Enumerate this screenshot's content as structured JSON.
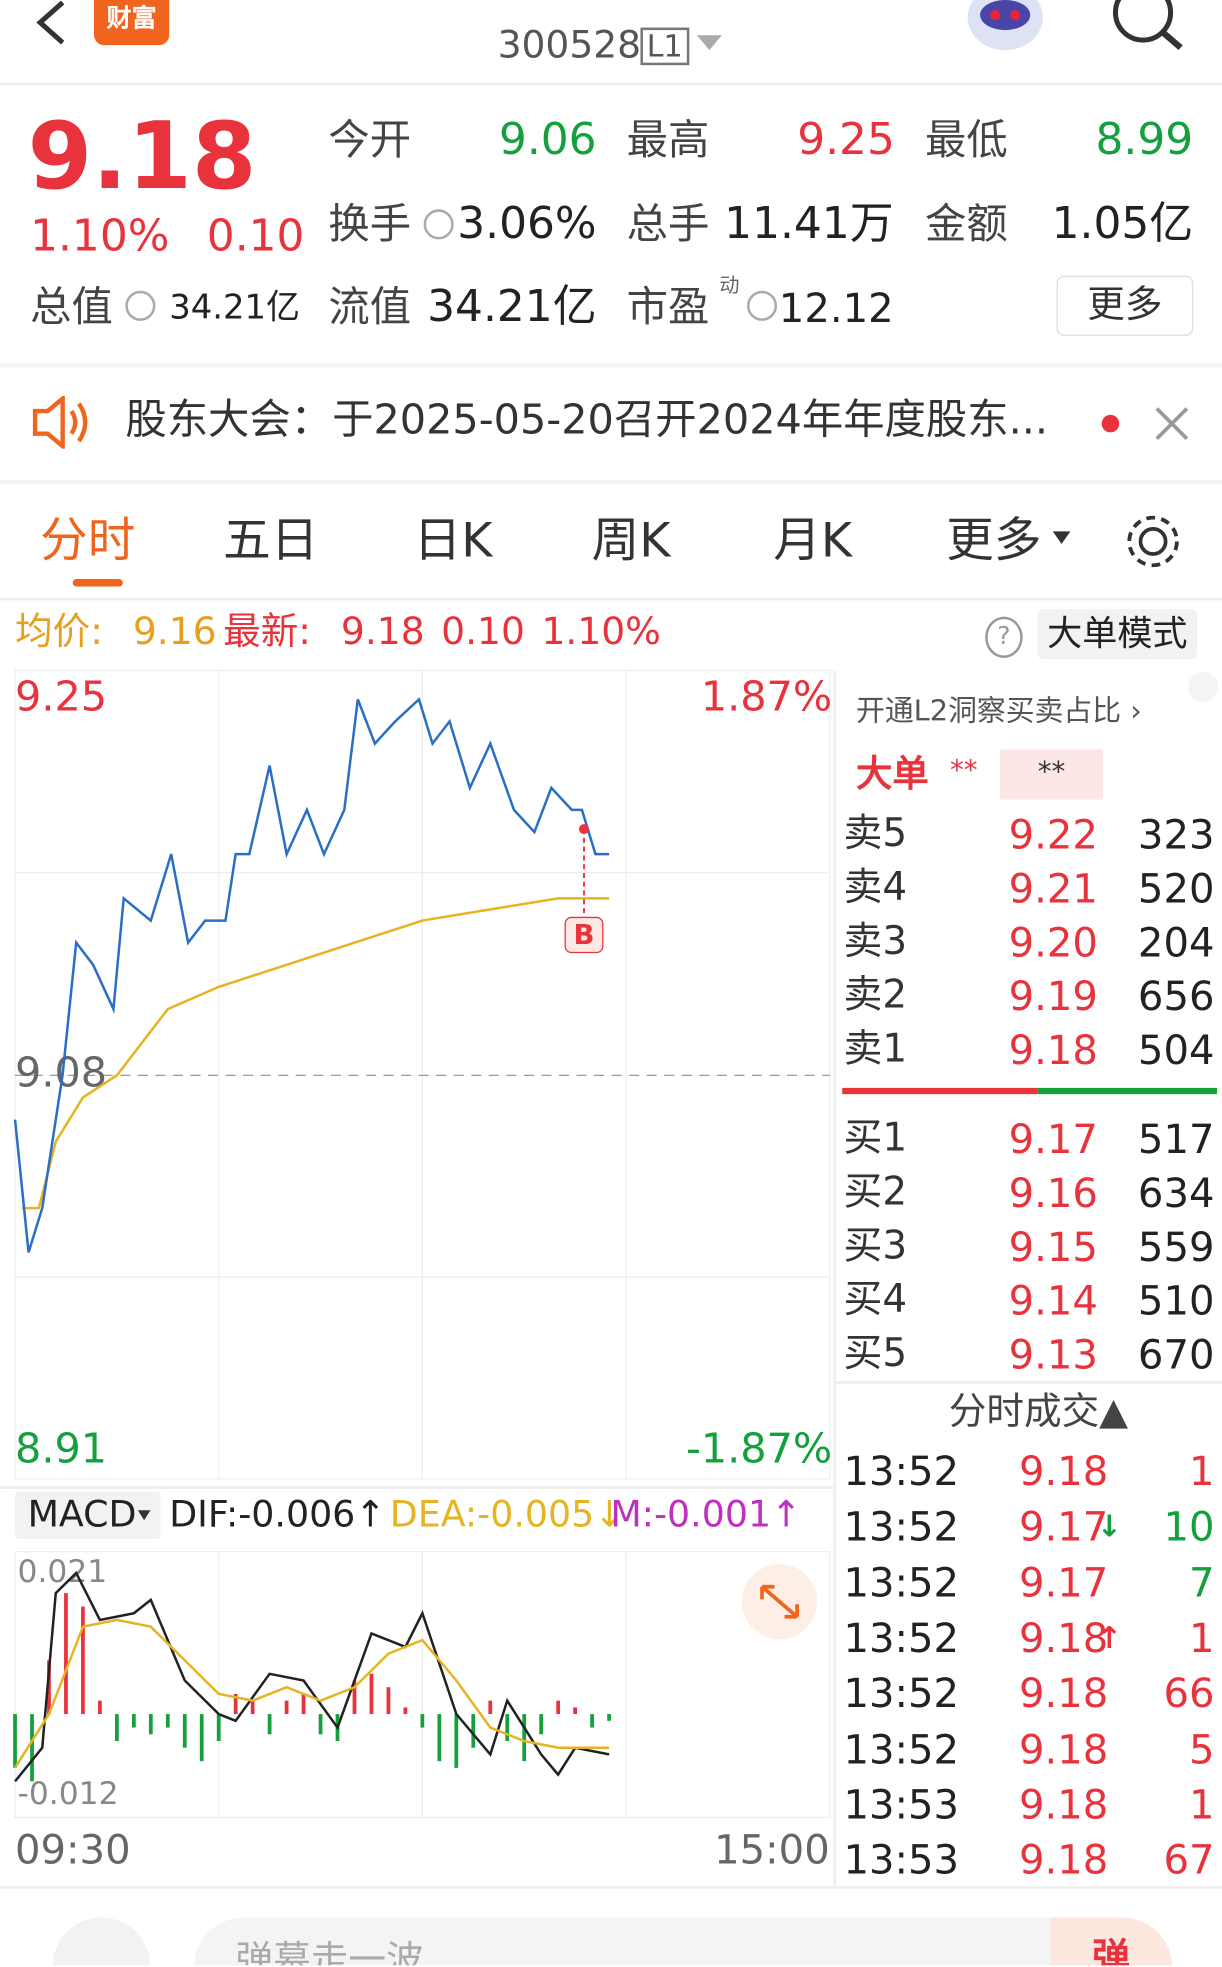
{
  "header": {
    "logo": "财富",
    "code": "300528",
    "level": "L1"
  },
  "quote": {
    "price": "9.18",
    "change_pct": "1.10%",
    "change": "0.10",
    "open_label": "今开",
    "open": "9.06",
    "high_label": "最高",
    "high": "9.25",
    "low_label": "最低",
    "low": "8.99",
    "turnover_label": "换手",
    "turnover": "3.06%",
    "volume_label": "总手",
    "volume": "11.41万",
    "amount_label": "金额",
    "amount": "1.05亿",
    "mcap_label": "总值",
    "mcap": "34.21亿",
    "float_label": "流值",
    "float": "34.21亿",
    "pe_label": "市盈",
    "pe_sup": "动",
    "pe": "12.12",
    "more": "更多"
  },
  "notice": {
    "text": "股东大会：于2025-05-20召开2024年年度股东..."
  },
  "tabs": [
    "分时",
    "五日",
    "日K",
    "周K",
    "月K",
    "更多"
  ],
  "summary": {
    "change": "0.10",
    "change_pct": "1.10%",
    "help": "?",
    "mode": "大单模式"
  },
  "chart_data": [
    {
      "type": "line",
      "ylim": [
        8.91,
        9.25
      ],
      "yticks": [
        9.25,
        9.08,
        8.91
      ],
      "preclose": 9.08,
      "y2lim": [
        -1.87,
        1.87
      ],
      "y2ticks": [
        {
          "value": 1.87,
          "label": "1.87%"
        },
        {
          "value": -1.87,
          "label": "-1.87%"
        }
      ],
      "xlim": [
        0,
        240
      ],
      "grid": true,
      "annotation": "B",
      "series": [
        {
          "name": "均价:",
          "current": "9.16",
          "color": "#e6b422",
          "x": [
            2,
            7,
            12,
            20,
            30,
            45,
            60,
            80,
            100,
            120,
            140,
            160,
            175
          ],
          "values": [
            9.02,
            9.02,
            9.05,
            9.07,
            9.08,
            9.11,
            9.12,
            9.13,
            9.14,
            9.15,
            9.155,
            9.16,
            9.16
          ]
        },
        {
          "name": "最新:",
          "current": "9.18",
          "color": "#2a6fc4",
          "x": [
            0,
            4,
            8,
            14,
            18,
            23,
            29,
            32,
            40,
            46,
            51,
            56,
            62,
            65,
            69,
            75,
            80,
            86,
            91,
            97,
            101,
            106,
            112,
            119,
            123,
            128,
            134,
            140,
            147,
            153,
            158,
            164,
            167,
            171,
            175
          ],
          "values": [
            9.06,
            9.0,
            9.02,
            9.08,
            9.14,
            9.13,
            9.11,
            9.16,
            9.15,
            9.18,
            9.14,
            9.15,
            9.15,
            9.18,
            9.18,
            9.22,
            9.18,
            9.2,
            9.18,
            9.2,
            9.25,
            9.23,
            9.24,
            9.25,
            9.23,
            9.24,
            9.21,
            9.23,
            9.2,
            9.19,
            9.21,
            9.2,
            9.2,
            9.18,
            9.18
          ]
        }
      ]
    },
    {
      "type": "macd",
      "title": "MACD",
      "ylim": [
        -0.012,
        0.021
      ],
      "yticks": [
        {
          "value": 0.021,
          "label": "0.021"
        },
        {
          "value": -0.012,
          "label": "-0.012"
        }
      ],
      "xlim": [
        0,
        240
      ],
      "xticks": [
        {
          "value": 0,
          "label": "09:30"
        },
        {
          "value": 240,
          "label": "15:00"
        }
      ],
      "series": [
        {
          "label": "DIF:-0.006↑",
          "color": "#222222",
          "x": [
            0,
            8,
            12,
            18,
            25,
            35,
            40,
            50,
            60,
            65,
            75,
            85,
            95,
            105,
            115,
            120,
            130,
            140,
            145,
            155,
            160,
            165,
            175
          ],
          "values": [
            -0.01,
            -0.005,
            0.018,
            0.021,
            0.014,
            0.015,
            0.017,
            0.005,
            0.0,
            -0.001,
            0.006,
            0.005,
            -0.002,
            0.012,
            0.01,
            0.015,
            0.0,
            -0.006,
            0.002,
            -0.006,
            -0.009,
            -0.005,
            -0.006
          ]
        },
        {
          "label": "DEA:-0.005↓",
          "color": "#e6b422",
          "x": [
            0,
            10,
            20,
            30,
            40,
            50,
            60,
            70,
            80,
            90,
            100,
            110,
            120,
            130,
            140,
            150,
            160,
            170,
            175
          ],
          "values": [
            -0.008,
            0.0,
            0.013,
            0.014,
            0.013,
            0.008,
            0.003,
            0.002,
            0.004,
            0.002,
            0.004,
            0.009,
            0.011,
            0.005,
            -0.002,
            -0.004,
            -0.005,
            -0.005,
            -0.005
          ]
        },
        {
          "label": "M:-0.001↑",
          "color": "#c030c0",
          "bars": true,
          "x": [
            0,
            5,
            10,
            15,
            20,
            25,
            30,
            35,
            40,
            45,
            50,
            55,
            60,
            65,
            70,
            75,
            80,
            85,
            90,
            95,
            100,
            105,
            110,
            115,
            120,
            125,
            130,
            135,
            140,
            145,
            150,
            155,
            160,
            165,
            170,
            175
          ],
          "values": [
            -0.008,
            -0.01,
            0.008,
            0.018,
            0.016,
            0.002,
            -0.004,
            -0.002,
            -0.003,
            -0.002,
            -0.005,
            -0.007,
            -0.004,
            0.003,
            0.002,
            -0.003,
            0.002,
            0.003,
            -0.003,
            -0.004,
            0.005,
            0.006,
            0.004,
            0.001,
            -0.002,
            -0.007,
            -0.008,
            -0.005,
            0.002,
            -0.004,
            -0.007,
            -0.003,
            0.002,
            0.001,
            -0.002,
            -0.001
          ]
        }
      ]
    }
  ],
  "order_book": {
    "promo": "开通L2洞察买卖占比 ›",
    "big_order": "大单",
    "mask_a": "**",
    "mask_b": "**",
    "sell": [
      {
        "label": "卖5",
        "price": "9.22",
        "volume": "323"
      },
      {
        "label": "卖4",
        "price": "9.21",
        "volume": "520"
      },
      {
        "label": "卖3",
        "price": "9.20",
        "volume": "204"
      },
      {
        "label": "卖2",
        "price": "9.19",
        "volume": "656"
      },
      {
        "label": "卖1",
        "price": "9.18",
        "volume": "504"
      }
    ],
    "buy": [
      {
        "label": "买1",
        "price": "9.17",
        "volume": "517"
      },
      {
        "label": "买2",
        "price": "9.16",
        "volume": "634"
      },
      {
        "label": "买3",
        "price": "9.15",
        "volume": "559"
      },
      {
        "label": "买4",
        "price": "9.14",
        "volume": "510"
      },
      {
        "label": "买5",
        "price": "9.13",
        "volume": "670"
      }
    ]
  },
  "trades": {
    "title": "分时成交▲",
    "rows": [
      {
        "time": "13:52",
        "price": "9.18",
        "volume": "1",
        "color": "red"
      },
      {
        "time": "13:52",
        "price": "9.17",
        "flag": "↓",
        "volume": "10",
        "color": "green"
      },
      {
        "time": "13:52",
        "price": "9.17",
        "volume": "7",
        "color": "green"
      },
      {
        "time": "13:52",
        "price": "9.18",
        "flag": "↑",
        "volume": "1",
        "color": "red"
      },
      {
        "time": "13:52",
        "price": "9.18",
        "volume": "66",
        "color": "red"
      },
      {
        "time": "13:52",
        "price": "9.18",
        "volume": "5",
        "color": "red"
      },
      {
        "time": "13:53",
        "price": "9.18",
        "volume": "1",
        "color": "red"
      },
      {
        "time": "13:53",
        "price": "9.18",
        "volume": "67",
        "color": "red"
      }
    ]
  },
  "bottom": {
    "input": "弹幕走一波",
    "button": "弹"
  }
}
